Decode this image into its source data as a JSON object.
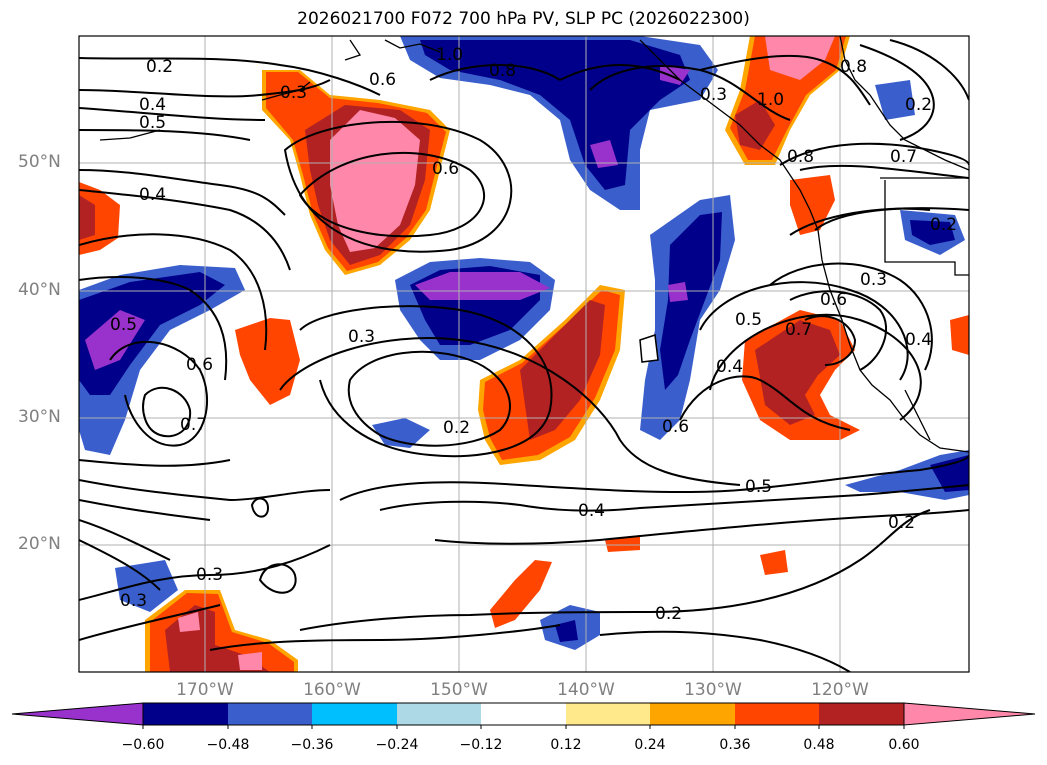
{
  "title": "2026021700 F072 700 hPa PV, SLP PC (2026022300)",
  "lat_labels": [
    "50°N",
    "40°N",
    "30°N",
    "20°N"
  ],
  "lon_labels": [
    "170°W",
    "160°W",
    "150°W",
    "140°W",
    "130°W",
    "120°W"
  ],
  "colorbar": {
    "ticks": [
      "−0.60",
      "−0.48",
      "−0.36",
      "−0.24",
      "−0.12",
      "0.12",
      "0.24",
      "0.36",
      "0.48",
      "0.60"
    ],
    "colors": [
      "#9932cc",
      "#00008b",
      "#3a5fcd",
      "#00bfff",
      "#add8e6",
      "#ffffff",
      "#ffe98a",
      "#ffa500",
      "#ff4500",
      "#b22222",
      "#ff88aa"
    ]
  },
  "contour_labels": [
    "0.2",
    "0.4",
    "0.5",
    "0.4",
    "0.6",
    "1.0",
    "0.8",
    "0.6",
    "1.0",
    "0.8",
    "0.8",
    "0.7",
    "0.2",
    "0.3",
    "0.5",
    "0.6",
    "0.7",
    "0.3",
    "0.2",
    "0.4",
    "0.5",
    "0.6",
    "0.7",
    "0.4",
    "0.5",
    "0.6",
    "0.3",
    "0.4",
    "0.2",
    "0.2",
    "0.3",
    "0.3",
    "0.2",
    "0.3"
  ]
}
